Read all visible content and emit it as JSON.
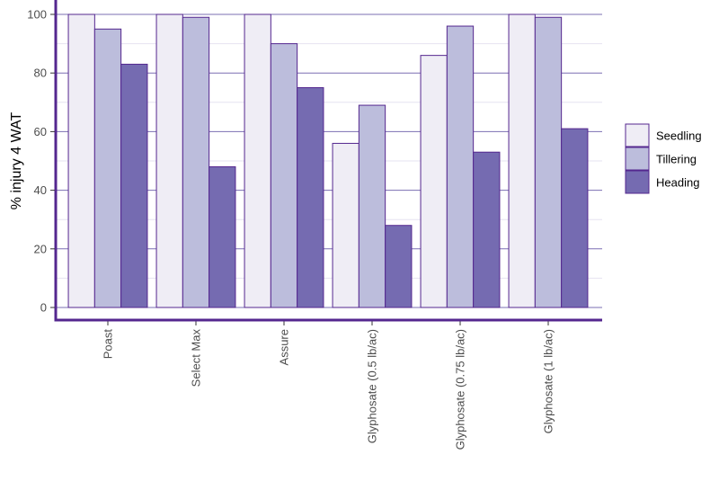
{
  "chart_data": {
    "type": "bar",
    "title": "",
    "xlabel": "",
    "ylabel": "% injury 4 WAT",
    "categories": [
      "Poast",
      "Select Max",
      "Assure",
      "Glyphosate (0.5 lb/ac)",
      "Glyphosate (0.75 lb/ac)",
      "Glyphosate (1 lb/ac)"
    ],
    "series": [
      {
        "name": "Seedling",
        "color": "#efedf5",
        "values": [
          100,
          100,
          100,
          56,
          86,
          100
        ]
      },
      {
        "name": "Tillering",
        "color": "#bcbddc",
        "values": [
          95,
          99,
          90,
          69,
          96,
          99
        ]
      },
      {
        "name": "Heading",
        "color": "#756bb1",
        "values": [
          83,
          48,
          75,
          28,
          53,
          61
        ]
      }
    ],
    "ylim": [
      0,
      100
    ],
    "yticks": [
      0,
      20,
      40,
      60,
      80,
      100
    ],
    "grid": true,
    "legend_position": "right",
    "colors": {
      "outline": "#54278f",
      "axis": "#54278f",
      "grid_major": "#7b6fb3",
      "grid_minor": "#e6e3f0"
    }
  }
}
